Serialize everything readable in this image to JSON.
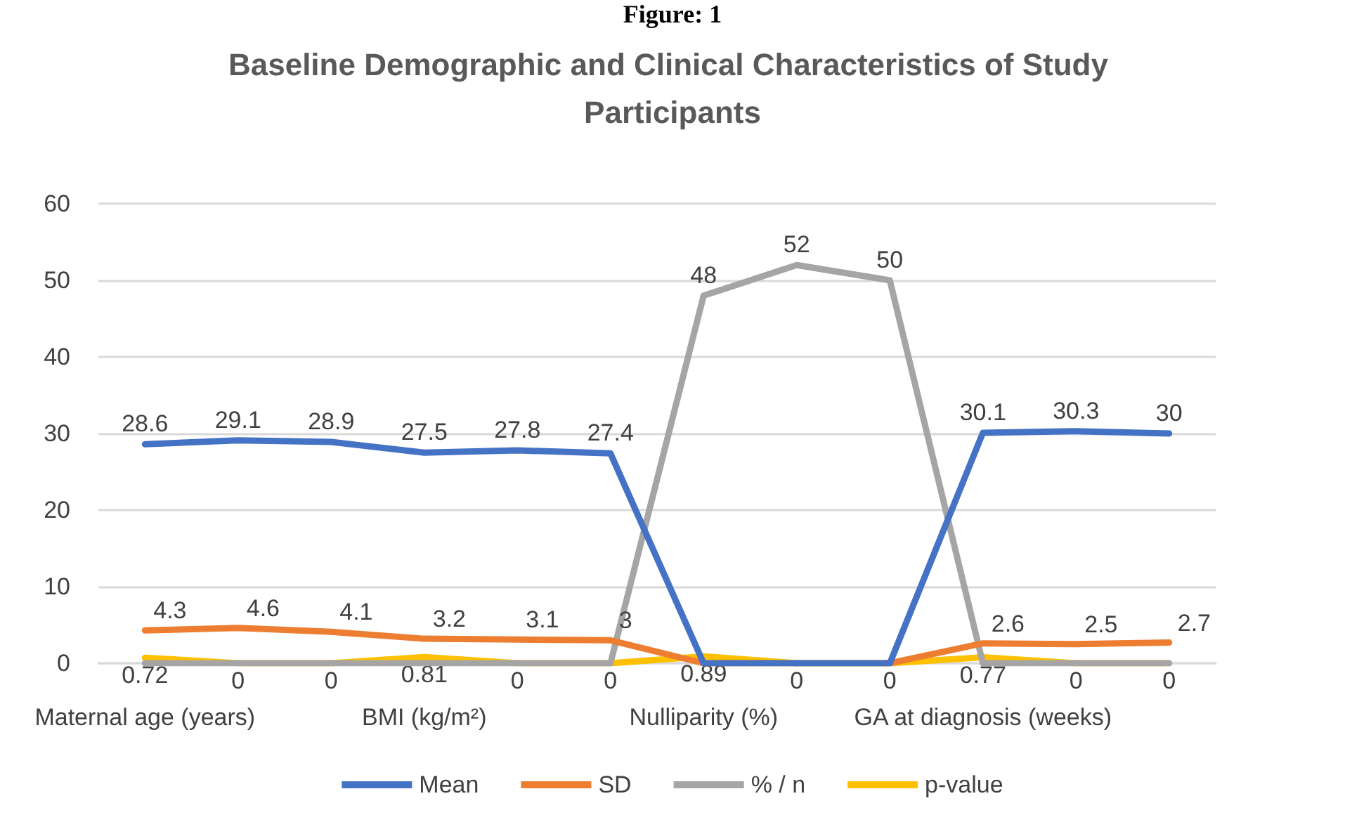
{
  "chart_data": {
    "type": "line",
    "title": "Baseline Demographic and Clinical Characteristics of Study Participants",
    "annotations": [
      "Figure: 1"
    ],
    "categories": [
      "Maternal age (years)",
      null,
      null,
      "BMI (kg/m²)",
      null,
      null,
      "Nulliparity (%)",
      null,
      null,
      "GA at diagnosis (weeks)",
      null,
      null
    ],
    "series": [
      {
        "name": "Mean",
        "color": "#4472c4",
        "values": [
          28.6,
          29.1,
          28.9,
          27.5,
          27.8,
          27.4,
          0,
          0,
          0,
          30.1,
          30.3,
          30
        ],
        "value_labels": [
          "28.6",
          "29.1",
          "28.9",
          "27.5",
          "27.8",
          "27.4",
          null,
          "0",
          "0",
          "30.1",
          "30.3",
          "30"
        ]
      },
      {
        "name": "SD",
        "color": "#ed7d31",
        "values": [
          4.3,
          4.6,
          4.1,
          3.2,
          3.1,
          3,
          0,
          0,
          0,
          2.6,
          2.5,
          2.7
        ],
        "value_labels": [
          "4.3",
          "4.6",
          "4.1",
          "3.2",
          "3.1",
          "3",
          null,
          null,
          null,
          "2.6",
          "2.5",
          "2.7"
        ]
      },
      {
        "name": "% / n",
        "color": "#a5a5a5",
        "values": [
          0,
          0,
          0,
          0,
          0,
          0,
          48,
          52,
          50,
          0,
          0,
          0
        ],
        "value_labels": [
          null,
          "0",
          "0",
          null,
          "0",
          "0",
          "48",
          "52",
          "50",
          null,
          "0",
          "0"
        ]
      },
      {
        "name": "p-value",
        "color": "#ffc000",
        "values": [
          0.72,
          0,
          0,
          0.81,
          0,
          0,
          0.89,
          0,
          0,
          0.77,
          0,
          0
        ],
        "value_labels": [
          "0.72",
          null,
          null,
          "0.81",
          null,
          null,
          "0.89",
          null,
          null,
          "0.77",
          null,
          null
        ]
      }
    ],
    "ylim": [
      0,
      60
    ],
    "yticks": [
      0,
      10,
      20,
      30,
      40,
      50,
      60
    ],
    "grid": "y",
    "legend": "bottom",
    "marker": "none",
    "line_style": "solid"
  }
}
